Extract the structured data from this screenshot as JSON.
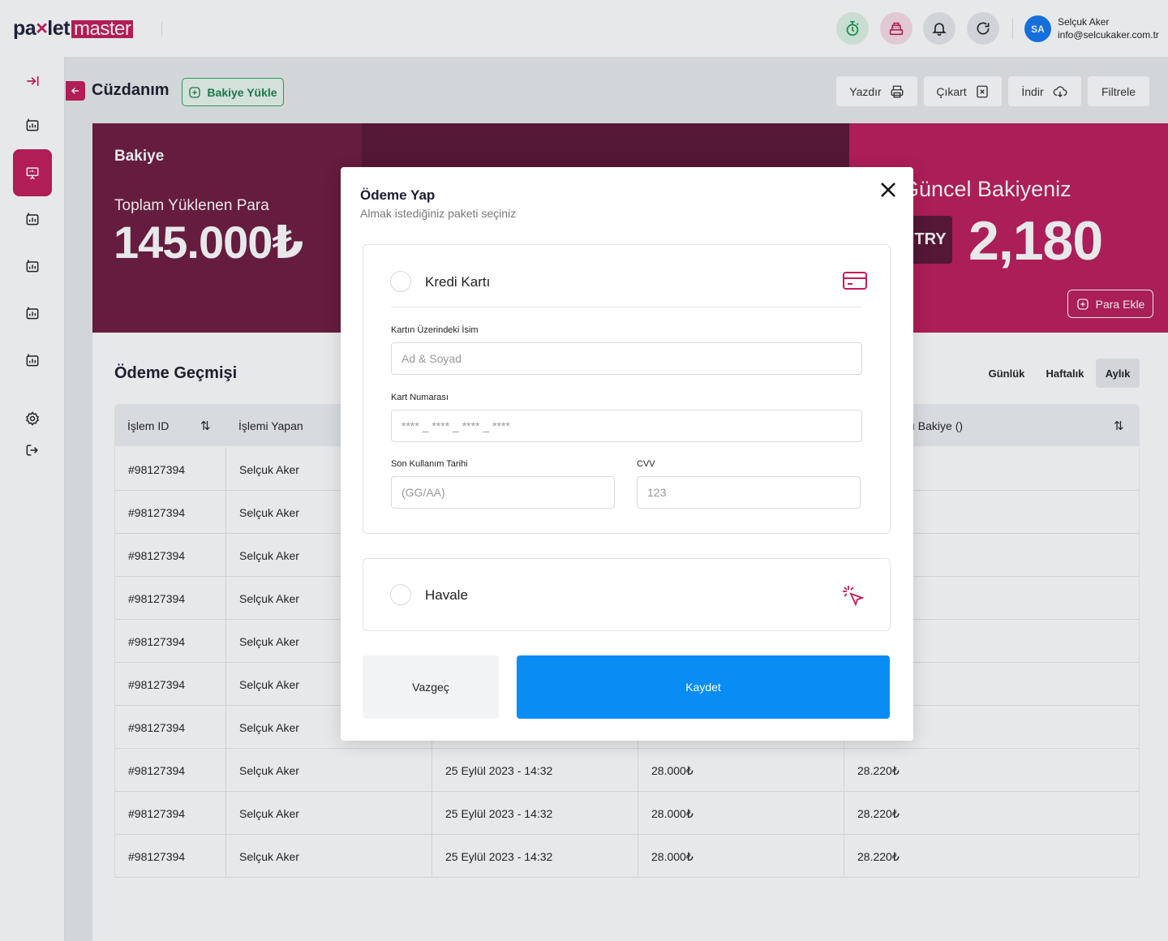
{
  "brand": {
    "part1": "pa",
    "part1b": "let",
    "part2": "master"
  },
  "user": {
    "initials": "SA",
    "name": "Selçuk Aker",
    "email": "info@selcukaker.com.tr"
  },
  "header": {
    "title": "Cüzdanım",
    "load_balance": "Bakiye Yükle",
    "actions": {
      "print": "Yazdır",
      "export": "Çıkart",
      "download": "İndir",
      "filter": "Filtrele"
    }
  },
  "balance": {
    "label": "Bakiye",
    "total_label": "Toplam Yüklenen Para",
    "total_value": "145.000₺",
    "current_label": "Güncel Bakiyeniz",
    "currency": "TRY",
    "current_value": "2,180",
    "add_money": "Para Ekle"
  },
  "history": {
    "title": "Ödeme Geçmişi",
    "periods": [
      "Günlük",
      "Haftalık",
      "Aylık"
    ],
    "active_period": "Aylık",
    "columns": [
      "İşlem ID",
      "İşlemi Yapan",
      "ı Bakiye ()"
    ],
    "rows": [
      {
        "id": "#98127394",
        "user": "Selçuk Aker",
        "date": "",
        "amount": "",
        "balance": ""
      },
      {
        "id": "#98127394",
        "user": "Selçuk Aker",
        "date": "",
        "amount": "",
        "balance": ""
      },
      {
        "id": "#98127394",
        "user": "Selçuk Aker",
        "date": "",
        "amount": "",
        "balance": ""
      },
      {
        "id": "#98127394",
        "user": "Selçuk Aker",
        "date": "",
        "amount": "",
        "balance": ""
      },
      {
        "id": "#98127394",
        "user": "Selçuk Aker",
        "date": "",
        "amount": "",
        "balance": ""
      },
      {
        "id": "#98127394",
        "user": "Selçuk Aker",
        "date": "",
        "amount": "",
        "balance": ""
      },
      {
        "id": "#98127394",
        "user": "Selçuk Aker",
        "date": "",
        "amount": "",
        "balance": ""
      },
      {
        "id": "#98127394",
        "user": "Selçuk Aker",
        "date": "25 Eylül 2023 - 14:32",
        "amount": "28.000₺",
        "balance": "28.220₺"
      },
      {
        "id": "#98127394",
        "user": "Selçuk Aker",
        "date": "25 Eylül 2023 - 14:32",
        "amount": "28.000₺",
        "balance": "28.220₺"
      },
      {
        "id": "#98127394",
        "user": "Selçuk Aker",
        "date": "25 Eylül 2023 - 14:32",
        "amount": "28.000₺",
        "balance": "28.220₺"
      }
    ]
  },
  "modal": {
    "title": "Ödeme Yap",
    "subtitle": "Almak istediğiniz paketi seçiniz",
    "credit_card": {
      "label": "Kredi Kartı",
      "name_label": "Kartın Üzerindeki İsim",
      "name_placeholder": "Ad & Soyad",
      "number_label": "Kart Numarası",
      "number_placeholder": "**** _ **** _ **** _ ****",
      "expiry_label": "Son Kullanım Tarihi",
      "expiry_placeholder": "(GG/AA)",
      "cvv_label": "CVV",
      "cvv_placeholder": "123"
    },
    "transfer": {
      "label": "Havale"
    },
    "cancel": "Vazgeç",
    "save": "Kaydet"
  },
  "colors": {
    "brand": "#c21c5c",
    "dark_wine": "#6e1a3f",
    "accent_blue": "#0a8cf5",
    "green": "#27a463"
  }
}
